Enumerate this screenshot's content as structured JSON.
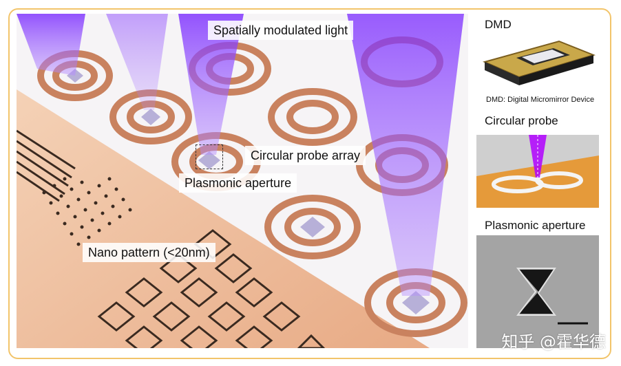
{
  "main_figure": {
    "labels": {
      "spatially_modulated_light": "Spatially modulated light",
      "circular_probe_array": "Circular probe array",
      "plasmonic_aperture": "Plasmonic aperture",
      "nano_pattern": "Nano pattern (<20nm)"
    },
    "colors": {
      "substrate": "#f1c6a2",
      "mask": "#f7f6f8",
      "light_beam": "#8a3cff",
      "pattern": "#3a2a20"
    }
  },
  "side_panels": {
    "dmd": {
      "title": "DMD",
      "caption": "DMD: Digital Micromirror Device"
    },
    "circular_probe": {
      "title": "Circular probe"
    },
    "plasmonic_aperture": {
      "title": "Plasmonic aperture"
    }
  },
  "watermark": "知乎 @霍华德"
}
